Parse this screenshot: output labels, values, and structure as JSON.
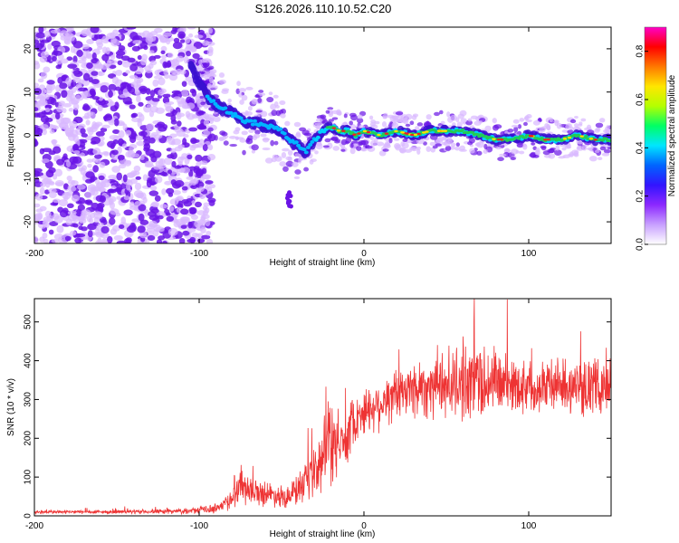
{
  "title": "S126.2026.110.10.52.C20",
  "colors": {
    "snr_line": "#ee3333",
    "axis": "#000000",
    "ridge": "#22cc55",
    "ridge_hot": "#ee2222",
    "scatter_dark": "#6a14e6",
    "scatter_light": "#d8b8ff"
  },
  "chart_data": [
    {
      "type": "heatmap",
      "name": "spectrogram",
      "xlabel": "Height of straight line (km)",
      "ylabel": "Frequency (Hz)",
      "xlim": [
        -200,
        150
      ],
      "ylim": [
        -25,
        25
      ],
      "xticks": [
        -200,
        -100,
        0,
        100
      ],
      "yticks": [
        -20,
        -10,
        0,
        10,
        20
      ],
      "ridge": {
        "x": [
          -105,
          -100,
          -95,
          -90,
          -85,
          -80,
          -75,
          -70,
          -65,
          -60,
          -55,
          -50,
          -45,
          -40,
          -35,
          -30,
          -25,
          -20,
          -15,
          -10,
          -5,
          0,
          10,
          20,
          30,
          40,
          50,
          60,
          70,
          80,
          90,
          100,
          110,
          120,
          130,
          140,
          150
        ],
        "y": [
          16,
          12,
          9,
          7,
          6,
          5,
          4,
          3,
          3,
          2,
          2,
          1,
          -1,
          -2,
          -4,
          -1,
          1,
          2,
          1,
          1,
          0,
          1,
          0,
          1,
          0,
          1,
          1,
          1,
          0,
          -1,
          -1,
          0,
          -1,
          -1,
          0,
          -1,
          -1
        ]
      },
      "noise_region_km": [
        -200,
        -100
      ],
      "colorbar": {
        "label": "Normalized spectral amplitude",
        "range": [
          0,
          0.9
        ],
        "ticks": [
          "0.0",
          "0.2",
          "0.4",
          "0.6",
          "0.8"
        ],
        "tick_values": [
          0.0,
          0.2,
          0.4,
          0.6,
          0.8
        ],
        "stops": [
          "#ffffff",
          "#c8a0ff",
          "#8c28ff",
          "#3214ff",
          "#0064ff",
          "#00e6ff",
          "#00ff64",
          "#b4ff00",
          "#ffe600",
          "#ff7800",
          "#ff0000",
          "#ff00c8"
        ]
      }
    },
    {
      "type": "line",
      "name": "snr",
      "xlabel": "Height of straight line (km)",
      "ylabel": "SNR (10 * v/v)",
      "xlim": [
        -200,
        150
      ],
      "ylim": [
        0,
        560
      ],
      "xticks": [
        -200,
        -100,
        0,
        100
      ],
      "yticks": [
        0,
        100,
        200,
        300,
        400,
        500
      ],
      "envelope": {
        "x": [
          -200,
          -150,
          -110,
          -100,
          -90,
          -82,
          -78,
          -75,
          -70,
          -65,
          -60,
          -55,
          -50,
          -45,
          -40,
          -35,
          -30,
          -25,
          -22,
          -20,
          -18,
          -15,
          -10,
          -8,
          -5,
          0,
          5,
          10,
          15,
          20,
          25,
          30,
          40,
          50,
          60,
          70,
          80,
          90,
          100,
          110,
          120,
          130,
          140,
          150
        ],
        "mean": [
          10,
          10,
          12,
          14,
          20,
          35,
          70,
          85,
          70,
          60,
          60,
          55,
          50,
          55,
          65,
          80,
          110,
          140,
          190,
          220,
          170,
          180,
          210,
          230,
          250,
          270,
          280,
          290,
          300,
          310,
          320,
          330,
          335,
          340,
          345,
          350,
          345,
          340,
          335,
          340,
          335,
          330,
          335,
          335
        ],
        "spread": [
          6,
          6,
          8,
          10,
          15,
          30,
          55,
          60,
          45,
          40,
          40,
          35,
          35,
          40,
          50,
          60,
          80,
          110,
          150,
          160,
          120,
          100,
          90,
          80,
          70,
          75,
          75,
          80,
          80,
          85,
          90,
          95,
          100,
          110,
          120,
          130,
          110,
          90,
          80,
          85,
          80,
          80,
          85,
          85
        ]
      }
    }
  ]
}
